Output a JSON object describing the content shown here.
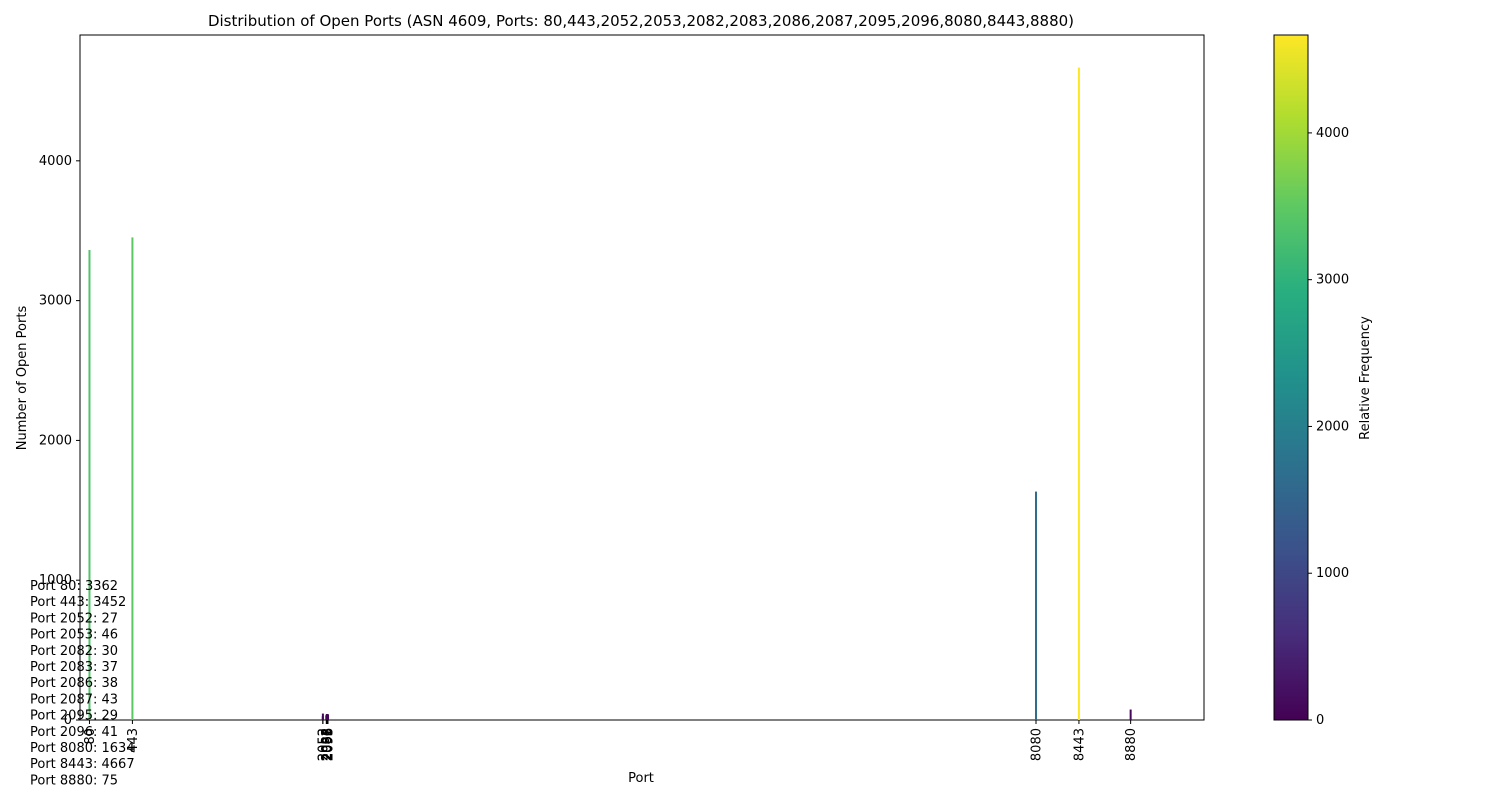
{
  "chart_data": {
    "type": "bar",
    "title": "Distribution of Open Ports (ASN 4609, Ports: 80,443,2052,2053,2082,2083,2086,2087,2095,2096,8080,8443,8880)",
    "xlabel": "Port",
    "ylabel": "Number of Open Ports",
    "colorbar_label": "Relative Frequency",
    "x": [
      80,
      443,
      2052,
      2053,
      2082,
      2083,
      2086,
      2087,
      2095,
      2096,
      8080,
      8443,
      8880
    ],
    "values": [
      3362,
      3452,
      27,
      46,
      30,
      37,
      38,
      43,
      29,
      41,
      1634,
      4667,
      75
    ],
    "xticks": [
      "80",
      "443",
      "2052",
      "2053",
      "2082",
      "2083",
      "2086",
      "2087",
      "2095",
      "2096",
      "8080",
      "8443",
      "8880"
    ],
    "xlim": [
      0,
      9500
    ],
    "ylim": [
      0,
      4900
    ],
    "yticks": [
      0,
      1000,
      2000,
      3000,
      4000
    ],
    "colorbar_ticks": [
      0,
      1000,
      2000,
      3000,
      4000
    ],
    "colorbar_range": [
      0,
      4667
    ],
    "colormap": "viridis",
    "grid": false,
    "annotations": [
      "Port 80: 3362",
      "Port 443: 3452",
      "Port 2052: 27",
      "Port 2053: 46",
      "Port 2082: 30",
      "Port 2083: 37",
      "Port 2086: 38",
      "Port 2087: 43",
      "Port 2095: 29",
      "Port 2096: 41",
      "Port 8080: 1634",
      "Port 8443: 4667",
      "Port 8880: 75"
    ]
  }
}
